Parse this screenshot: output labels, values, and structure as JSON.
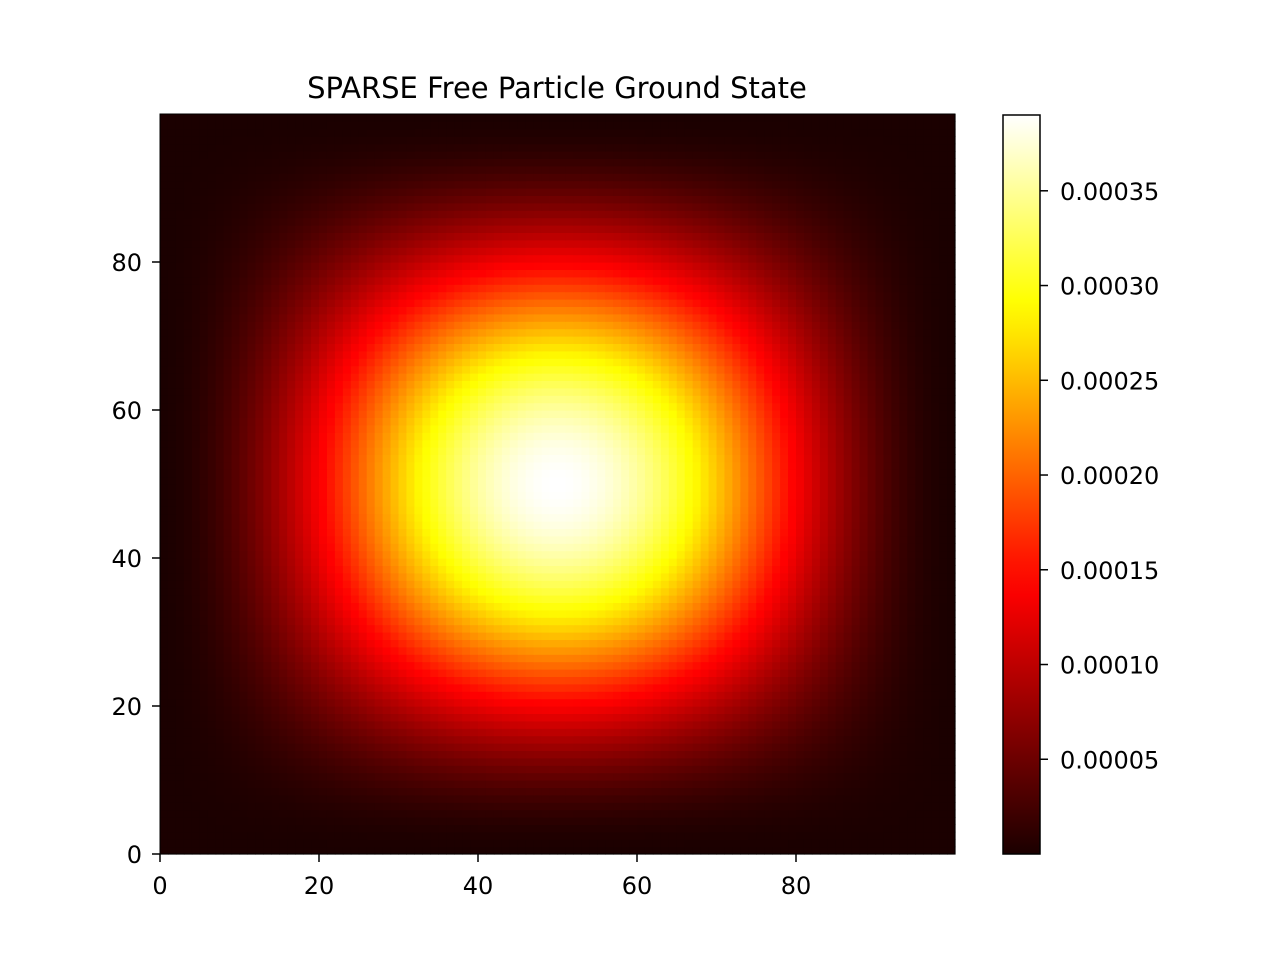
{
  "chart_data": {
    "type": "heatmap",
    "title": "SPARSE Free Particle Ground State",
    "xlabel": "",
    "ylabel": "",
    "grid_size": [
      100,
      100
    ],
    "xlim": [
      0,
      99
    ],
    "ylim": [
      0,
      99
    ],
    "x_ticks": [
      0,
      20,
      40,
      60,
      80
    ],
    "y_ticks": [
      0,
      20,
      40,
      60,
      80
    ],
    "origin": "lower",
    "z_model": "amplitude * sin(pi*(i+1)/101)^2 * sin(pi*(j+1)/101)^2",
    "amplitude": 0.00039,
    "z_range": [
      0.0,
      0.00039
    ],
    "colormap": "hot",
    "colorbar": {
      "ticks": [
        5e-05,
        0.0001,
        0.00015,
        0.0002,
        0.00025,
        0.0003,
        0.00035
      ],
      "tick_labels": [
        "0.00005",
        "0.00010",
        "0.00015",
        "0.00020",
        "0.00025",
        "0.00030",
        "0.00035"
      ],
      "range": [
        0.0,
        0.00039
      ],
      "placement": "right"
    },
    "grid": false
  }
}
